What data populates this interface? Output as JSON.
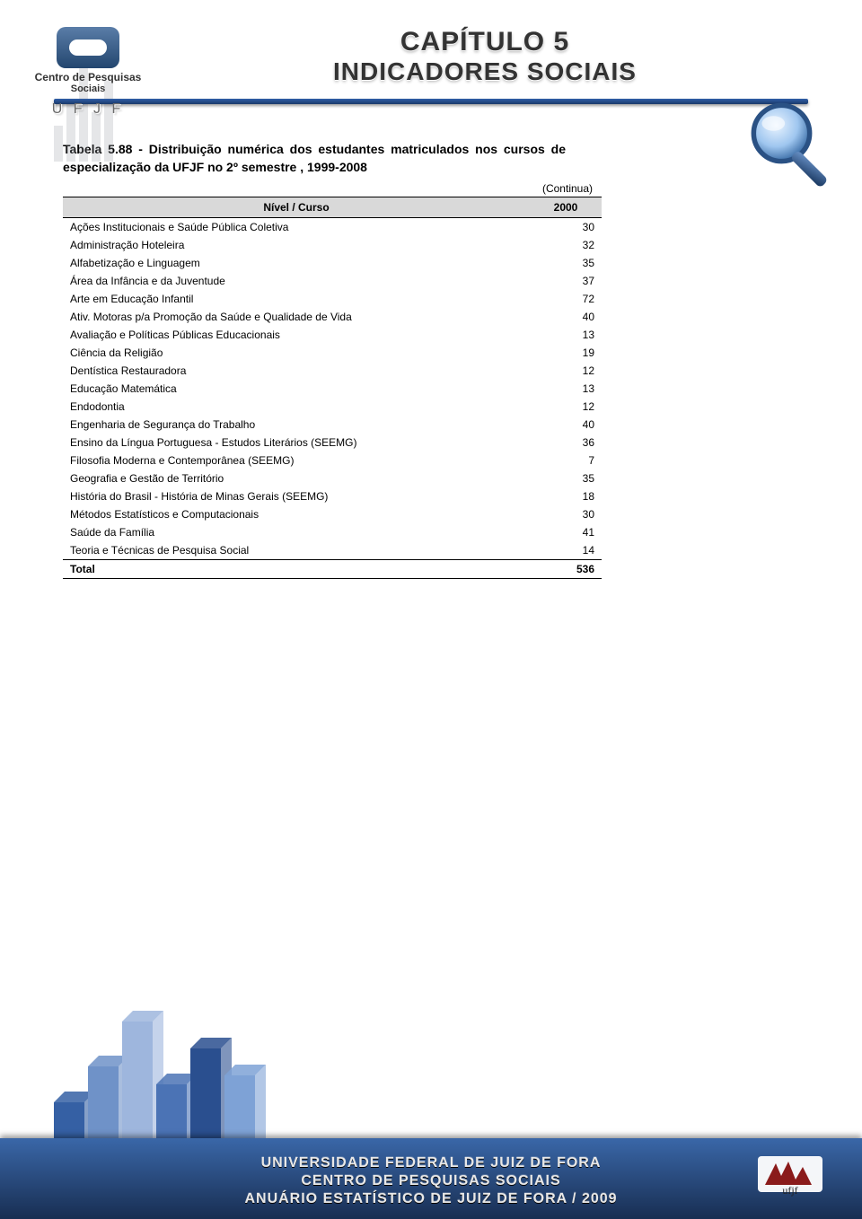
{
  "header": {
    "logo_line1": "Centro de Pesquisas",
    "logo_line2": "Sociais",
    "logo_ufjf": "U F J F",
    "chapter": "CAPÍTULO 5",
    "subtitle": "INDICADORES SOCIAIS"
  },
  "table": {
    "caption": "Tabela 5.88 - Distribuição numérica dos estudantes matriculados nos cursos de especialização da UFJF no 2º semestre , 1999-2008",
    "continua": "(Continua)",
    "col_course": "Nível / Curso",
    "col_year": "2000",
    "rows": [
      {
        "label": "Ações Institucionais e Saúde Pública Coletiva",
        "value": "30"
      },
      {
        "label": "Administração Hoteleira",
        "value": "32"
      },
      {
        "label": "Alfabetização e Linguagem",
        "value": "35"
      },
      {
        "label": "Área da Infância e da Juventude",
        "value": "37"
      },
      {
        "label": "Arte em Educação Infantil",
        "value": "72"
      },
      {
        "label": "Ativ. Motoras p/a Promoção da Saúde e Qualidade de Vida",
        "value": "40"
      },
      {
        "label": "Avaliação e Políticas Públicas Educacionais",
        "value": "13"
      },
      {
        "label": "Ciência da Religião",
        "value": "19"
      },
      {
        "label": "Dentística Restauradora",
        "value": "12"
      },
      {
        "label": "Educação Matemática",
        "value": "13"
      },
      {
        "label": "Endodontia",
        "value": "12"
      },
      {
        "label": "Engenharia de Segurança do Trabalho",
        "value": "40"
      },
      {
        "label": "Ensino da Língua Portuguesa - Estudos Literários (SEEMG)",
        "value": "36"
      },
      {
        "label": "Filosofia Moderna e Contemporânea (SEEMG)",
        "value": "7"
      },
      {
        "label": "Geografia e Gestão de Território",
        "value": "35"
      },
      {
        "label": "História do Brasil - História de Minas Gerais (SEEMG)",
        "value": "18"
      },
      {
        "label": "Métodos Estatísticos e Computacionais",
        "value": "30"
      },
      {
        "label": "Saúde da Família",
        "value": "41"
      },
      {
        "label": "Teoria e Técnicas de Pesquisa Social",
        "value": "14"
      }
    ],
    "total_label": "Total",
    "total_value": "536"
  },
  "footer": {
    "line1": "UNIVERSIDADE FEDERAL DE JUIZ DE FORA",
    "line2": "CENTRO DE PESQUISAS SOCIAIS",
    "line3": "ANUÁRIO ESTATÍSTICO DE JUIZ DE FORA / 2009"
  },
  "styling": {
    "band_gradient_top": "#3a67a8",
    "band_gradient_bottom": "#182e52",
    "divider_gradient_top": "#2f5ea8",
    "divider_gradient_bottom": "#1b3a6a",
    "header_row_bg": "#d9d9d9",
    "page_bg": "#ffffff",
    "footer_bar_colors": [
      "#3560a4",
      "#6f92c8",
      "#9eb6dd",
      "#4b73b5",
      "#2a4f8f",
      "#7ea2d6"
    ],
    "footer_bar_heights": [
      70,
      110,
      160,
      90,
      130,
      100
    ],
    "caption_fontsize": 14,
    "table_fontsize": 12,
    "title_fontsize": 30,
    "subtitle_fontsize": 28,
    "footer_fontsize": 16
  }
}
